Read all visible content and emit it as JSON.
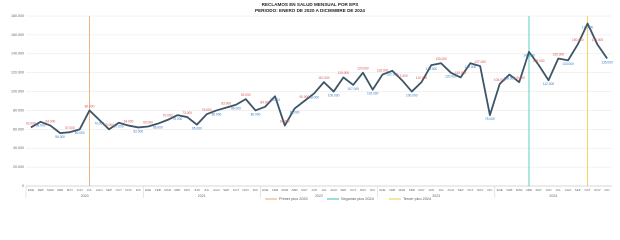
{
  "chart_data": {
    "type": "line",
    "title": "RECLAMOS EN SALUD MENSUAL POR EPS",
    "subtitle": "PERIODO: ENERO DE 2020 A DICIEMBRE DE 2024",
    "categories": [
      "ENE",
      "FEB",
      "MAR",
      "ABR",
      "MAY",
      "JUN",
      "JUL",
      "AGO",
      "SEP",
      "OCT",
      "NOV",
      "DIC",
      "ENE",
      "FEB",
      "MAR",
      "ABR",
      "MAY",
      "JUN",
      "JUL",
      "AGO",
      "SEP",
      "OCT",
      "NOV",
      "DIC",
      "ENE",
      "FEB",
      "MAR",
      "ABR",
      "MAY",
      "JUN",
      "JUL",
      "AGO",
      "SEP",
      "OCT",
      "NOV",
      "DIC",
      "ENE",
      "FEB",
      "MAR",
      "ABR",
      "MAY",
      "JUN",
      "JUL",
      "AGO",
      "SEP",
      "OCT",
      "NOV",
      "DIC",
      "ENE",
      "FEB",
      "MAR",
      "ABR",
      "MAY",
      "JUN",
      "JUL",
      "AGO",
      "SEP",
      "OCT",
      "NOV",
      "DIC"
    ],
    "years": [
      "2020",
      "2021",
      "2022",
      "2023",
      "2024"
    ],
    "series": [
      {
        "name": "Reclamos",
        "color": "#3d5566",
        "values": [
          62000,
          68000,
          64000,
          56000,
          57000,
          60000,
          80000,
          70000,
          60000,
          67000,
          64000,
          62000,
          63000,
          66000,
          70000,
          75000,
          73000,
          65000,
          76000,
          80000,
          83000,
          86000,
          92000,
          80000,
          84000,
          95000,
          64000,
          82000,
          90000,
          98000,
          110000,
          100000,
          115000,
          107000,
          120000,
          102000,
          118000,
          122000,
          112000,
          100000,
          110000,
          128000,
          130000,
          120000,
          115000,
          130000,
          127000,
          75000,
          108000,
          118000,
          110000,
          142000,
          128000,
          112000,
          135000,
          133000,
          150000,
          172000,
          150000,
          135000
        ],
        "value_labels": [
          "62.000",
          "68.000",
          "64.000",
          "56.000",
          "57.000",
          "60.000",
          "80.000",
          "70.000",
          "60.000",
          "67.000",
          "64.000",
          "62.000",
          "63.000",
          "66.000",
          "70.000",
          "75.000",
          "73.000",
          "65.000",
          "76.000",
          "80.000",
          "83.000",
          "86.000",
          "92.000",
          "80.000",
          "84.000",
          "95.000",
          "64.000",
          "82.000",
          "90.000",
          "98.000",
          "110.000",
          "100.000",
          "115.000",
          "107.000",
          "120.000",
          "102.000",
          "118.000",
          "122.000",
          "112.000",
          "100.000",
          "110.000",
          "128.000",
          "130.000",
          "120.000",
          "115.000",
          "130.000",
          "127.000",
          "75.000",
          "108.000",
          "118.000",
          "110.000",
          "142.000",
          "128.000",
          "112.000",
          "135.000",
          "133.000",
          "150.000",
          "172.000",
          "150.000",
          "135.000"
        ]
      }
    ],
    "peaks": [
      {
        "index": 6,
        "label": "Primer pico 2020",
        "color": "#f0a35e"
      },
      {
        "index": 51,
        "label": "Segundo pico 2024",
        "color": "#36c2b4"
      },
      {
        "index": 57,
        "label": "Tercer pico 2024",
        "color": "#f5c542"
      }
    ],
    "ylim": [
      0,
      180000
    ],
    "yticks": [
      0,
      {
        "value": 20000,
        "label": "20.000"
      },
      {
        "value": 40000,
        "label": "40.000"
      },
      {
        "value": 60000,
        "label": "60.000"
      },
      {
        "value": 80000,
        "label": "80.000"
      },
      {
        "value": 100000,
        "label": "100.000"
      },
      {
        "value": 120000,
        "label": "120.000"
      },
      {
        "value": 140000,
        "label": "140.000"
      },
      {
        "value": 160000,
        "label": "160.000"
      },
      {
        "value": 180000,
        "label": "180.000"
      }
    ],
    "grid": true
  }
}
